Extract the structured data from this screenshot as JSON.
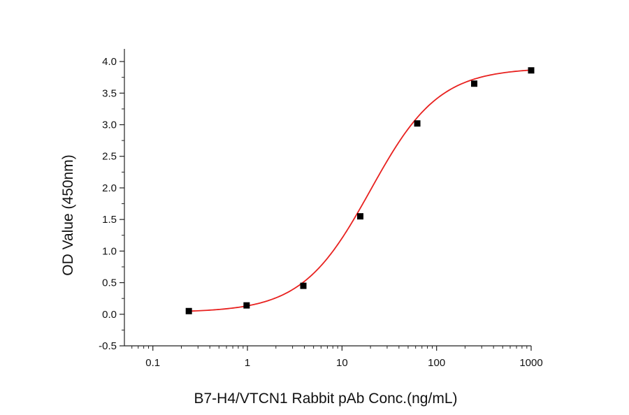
{
  "chart_data": {
    "type": "scatter",
    "title": "",
    "xlabel": "B7-H4/VTCN1 Rabbit pAb Conc.(ng/mL)",
    "ylabel": "OD Value (450nm)",
    "x_scale": "log",
    "xlim": [
      0.05,
      1000
    ],
    "ylim": [
      -0.5,
      4.2
    ],
    "x_ticks": [
      0.1,
      1,
      10,
      100,
      1000
    ],
    "x_tick_labels": [
      "0.1",
      "1",
      "10",
      "100",
      "1000"
    ],
    "y_ticks": [
      -0.5,
      0.0,
      0.5,
      1.0,
      1.5,
      2.0,
      2.5,
      3.0,
      3.5,
      4.0
    ],
    "y_tick_labels": [
      "-0.5",
      "0.0",
      "0.5",
      "1.0",
      "1.5",
      "2.0",
      "2.5",
      "3.0",
      "3.5",
      "4.0"
    ],
    "grid": false,
    "legend": "none",
    "series": [
      {
        "marker": "square",
        "color": "#000000",
        "x": [
          0.24,
          0.98,
          3.9,
          15.6,
          62.5,
          250,
          1000
        ],
        "y": [
          0.05,
          0.14,
          0.45,
          1.55,
          3.02,
          3.65,
          3.86
        ]
      }
    ],
    "fit_curve": {
      "color": "#e8211f",
      "model": "4PL",
      "bottom": 0.03,
      "top": 3.9,
      "ec50": 20,
      "hill": 1.2
    }
  }
}
